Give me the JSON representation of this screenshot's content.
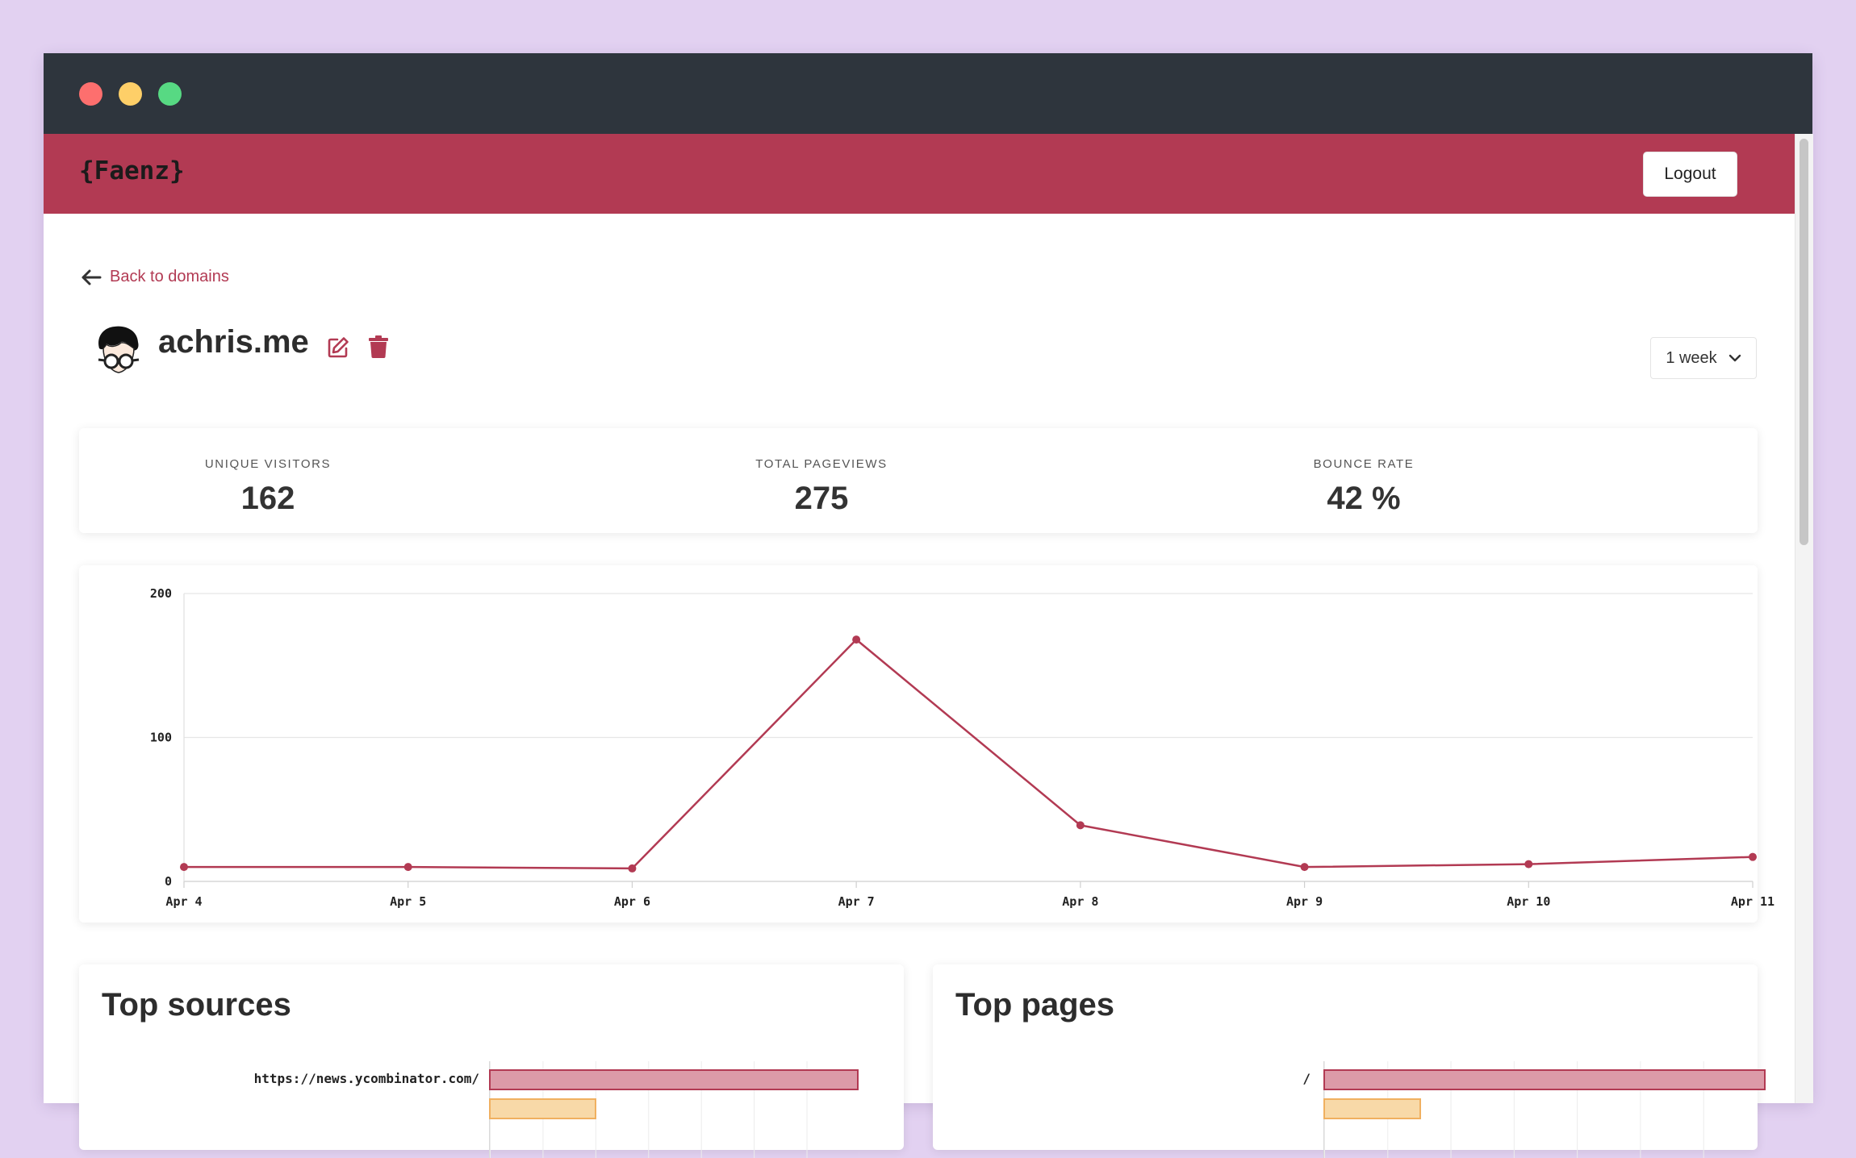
{
  "window": {
    "controls": [
      "close",
      "minimize",
      "maximize"
    ]
  },
  "navbar": {
    "brand": "{Faenz}",
    "logout_label": "Logout"
  },
  "back_link": {
    "label": "Back to domains"
  },
  "domain": {
    "name": "achris.me"
  },
  "range_select": {
    "value": "1 week"
  },
  "stats": [
    {
      "label": "UNIQUE VISITORS",
      "value": "162"
    },
    {
      "label": "TOTAL PAGEVIEWS",
      "value": "275"
    },
    {
      "label": "BOUNCE RATE",
      "value": "42 %"
    }
  ],
  "colors": {
    "brand": "#b23a53",
    "bar_primary": "#dc9aa8",
    "bar_secondary": "#f8d9a8",
    "bar_secondary_border": "#f0b060"
  },
  "chart_data": {
    "type": "line",
    "categories": [
      "Apr 4",
      "Apr 5",
      "Apr 6",
      "Apr 7",
      "Apr 8",
      "Apr 9",
      "Apr 10",
      "Apr 11"
    ],
    "values": [
      10,
      10,
      9,
      168,
      39,
      10,
      12,
      17
    ],
    "ylim": [
      0,
      200
    ],
    "yticks": [
      0,
      100,
      200
    ],
    "title": "",
    "xlabel": "",
    "ylabel": "",
    "grid": true,
    "color": "#b23a53"
  },
  "top_sources": {
    "title": "Top sources",
    "items": [
      {
        "label": "https://news.ycombinator.com/",
        "value": 1.0
      },
      {
        "label": "",
        "value": 0.29
      }
    ]
  },
  "top_pages": {
    "title": "Top pages",
    "items": [
      {
        "label": "/",
        "value": 1.0
      },
      {
        "label": "",
        "value": 0.22
      }
    ]
  }
}
